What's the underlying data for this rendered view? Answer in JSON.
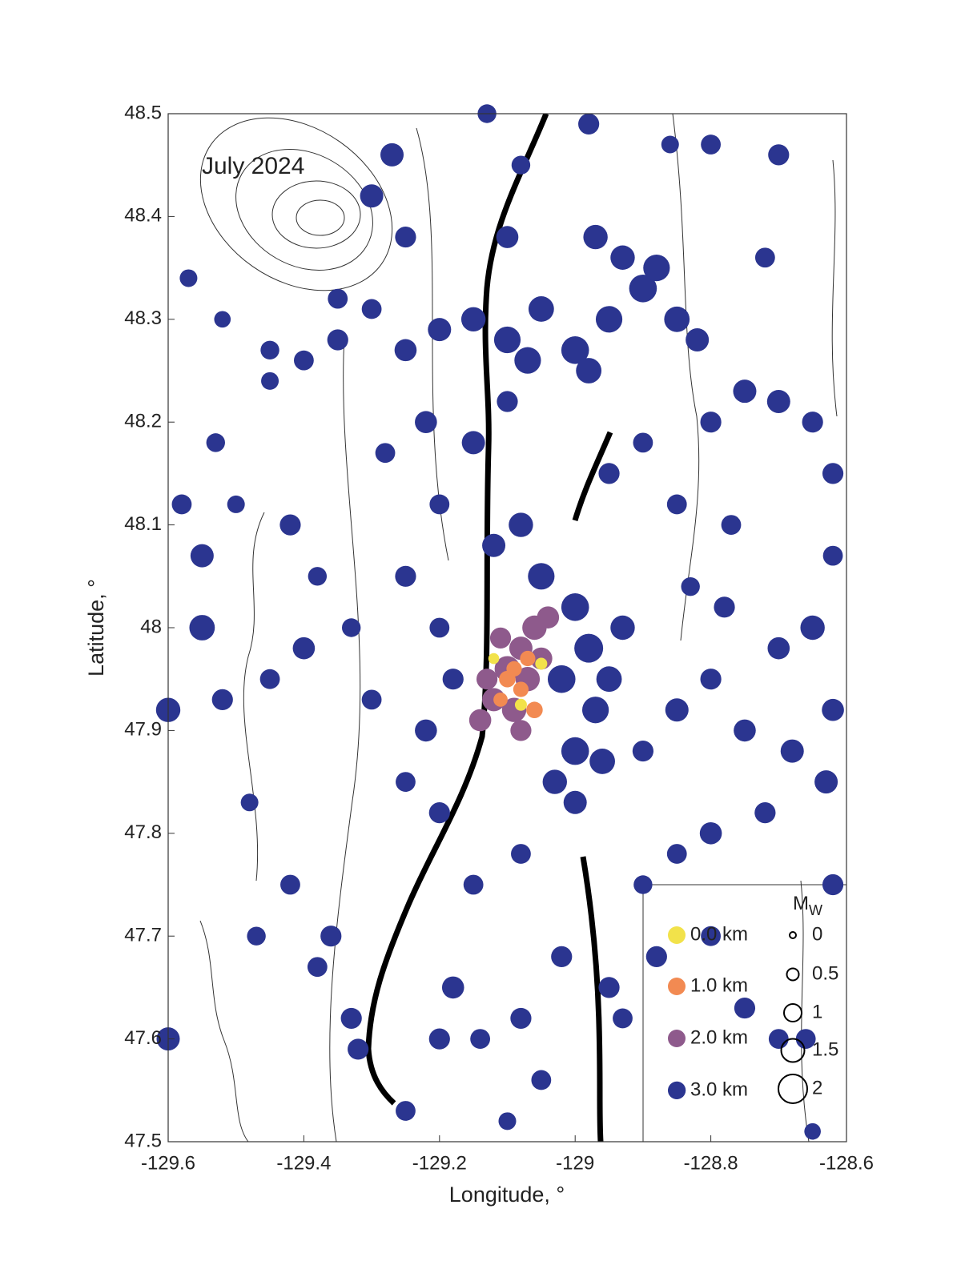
{
  "chart_data": {
    "type": "scatter",
    "annotation": "July 2024",
    "xlabel": "Longitude, °",
    "ylabel": "Latitude, °",
    "xlim": [
      -129.6,
      -128.6
    ],
    "ylim": [
      47.5,
      48.5
    ],
    "xticks": [
      -129.6,
      -129.4,
      -129.2,
      -129,
      -128.8,
      -128.6
    ],
    "yticks": [
      47.5,
      47.6,
      47.7,
      47.8,
      47.9,
      48,
      48.1,
      48.2,
      48.3,
      48.4,
      48.5
    ],
    "series": [
      {
        "name": "0.0 km",
        "color": "#f2e24a",
        "x": [
          -129.05,
          -129.12,
          -129.08
        ],
        "y": [
          47.965,
          47.97,
          47.925
        ],
        "size": [
          0.5,
          0.4,
          0.5
        ]
      },
      {
        "name": "1.0 km",
        "color": "#f28a52",
        "x": [
          -129.08,
          -129.1,
          -129.07,
          -129.11,
          -129.06,
          -129.09
        ],
        "y": [
          47.94,
          47.95,
          47.97,
          47.93,
          47.92,
          47.96
        ],
        "size": [
          0.8,
          0.9,
          0.8,
          0.7,
          0.9,
          0.8
        ]
      },
      {
        "name": "2.0 km",
        "color": "#8e5a8c",
        "x": [
          -129.06,
          -129.08,
          -129.1,
          -129.07,
          -129.12,
          -129.14,
          -129.09,
          -129.05,
          -129.11,
          -129.04,
          -129.13,
          -129.08
        ],
        "y": [
          48.0,
          47.98,
          47.96,
          47.95,
          47.93,
          47.91,
          47.92,
          47.97,
          47.99,
          48.01,
          47.95,
          47.9
        ],
        "size": [
          1.6,
          1.5,
          1.7,
          1.6,
          1.5,
          1.4,
          1.6,
          1.4,
          1.3,
          1.4,
          1.3,
          1.3
        ]
      },
      {
        "name": "3.0 km",
        "color": "#2b3590",
        "x": [
          -129.2,
          -129.15,
          -129.1,
          -129.05,
          -129.0,
          -128.95,
          -128.9,
          -128.85,
          -128.82,
          -129.25,
          -129.3,
          -129.35,
          -129.4,
          -129.45,
          -128.93,
          -128.88,
          -129.07,
          -128.98,
          -129.05,
          -129.0,
          -128.98,
          -129.02,
          -128.97,
          -129.0,
          -129.03,
          -128.95,
          -128.93,
          -129.08,
          -129.12,
          -128.96,
          -129.0,
          -129.57,
          -129.52,
          -129.45,
          -129.53,
          -129.58,
          -129.55,
          -129.5,
          -129.42,
          -129.38,
          -129.55,
          -129.6,
          -129.52,
          -129.45,
          -129.4,
          -129.33,
          -129.3,
          -129.48,
          -129.42,
          -129.47,
          -129.38,
          -129.36,
          -129.33,
          -129.32,
          -129.6,
          -129.25,
          -129.2,
          -129.18,
          -129.14,
          -129.08,
          -129.05,
          -129.02,
          -128.95,
          -128.93,
          -128.88,
          -128.8,
          -128.75,
          -128.7,
          -128.66,
          -128.65,
          -128.85,
          -129.1,
          -128.62,
          -128.63,
          -128.62,
          -128.68,
          -128.72,
          -128.8,
          -128.85,
          -128.9,
          -128.75,
          -128.7,
          -128.65,
          -128.62,
          -128.62,
          -128.65,
          -128.7,
          -128.75,
          -128.8,
          -128.77,
          -128.85,
          -128.83,
          -128.78,
          -128.8,
          -128.85,
          -128.9,
          -129.08,
          -129.15,
          -129.2,
          -129.25,
          -129.22,
          -129.18,
          -129.2,
          -129.25,
          -129.2,
          -129.28,
          -129.22,
          -129.15,
          -129.1,
          -128.95,
          -128.9,
          -129.3,
          -129.25,
          -129.1,
          -128.97,
          -129.08,
          -128.86,
          -128.7,
          -129.27,
          -129.13,
          -128.98,
          -128.8,
          -129.35,
          -128.72
        ],
        "y": [
          48.29,
          48.3,
          48.28,
          48.31,
          48.27,
          48.3,
          48.33,
          48.3,
          48.28,
          48.27,
          48.31,
          48.28,
          48.26,
          48.27,
          48.36,
          48.35,
          48.26,
          48.25,
          48.05,
          48.02,
          47.98,
          47.95,
          47.92,
          47.88,
          47.85,
          47.95,
          48.0,
          48.1,
          48.08,
          47.87,
          47.83,
          48.34,
          48.3,
          48.24,
          48.18,
          48.12,
          48.07,
          48.12,
          48.1,
          48.05,
          48.0,
          47.92,
          47.93,
          47.95,
          47.98,
          48.0,
          47.93,
          47.83,
          47.75,
          47.7,
          47.67,
          47.7,
          47.62,
          47.59,
          47.6,
          47.53,
          47.6,
          47.65,
          47.6,
          47.62,
          47.56,
          47.68,
          47.65,
          47.62,
          47.68,
          47.7,
          47.63,
          47.6,
          47.6,
          47.51,
          47.55,
          47.52,
          47.75,
          47.85,
          47.92,
          47.88,
          47.82,
          47.8,
          47.78,
          47.75,
          47.9,
          47.98,
          48.0,
          48.07,
          48.15,
          48.2,
          48.22,
          48.23,
          48.2,
          48.1,
          48.12,
          48.04,
          48.02,
          47.95,
          47.92,
          47.88,
          47.78,
          47.75,
          47.82,
          47.85,
          47.9,
          47.95,
          48.0,
          48.05,
          48.12,
          48.17,
          48.2,
          48.18,
          48.22,
          48.15,
          48.18,
          48.42,
          48.38,
          48.38,
          48.38,
          48.45,
          48.47,
          48.46,
          48.46,
          48.5,
          48.49,
          48.47,
          48.32,
          48.36
        ],
        "size": [
          1.5,
          1.6,
          1.8,
          1.7,
          1.9,
          1.8,
          1.9,
          1.7,
          1.5,
          1.4,
          1.2,
          1.3,
          1.2,
          1.1,
          1.6,
          1.8,
          1.8,
          1.7,
          1.8,
          1.9,
          2.0,
          1.9,
          1.8,
          1.9,
          1.6,
          1.7,
          1.6,
          1.6,
          1.5,
          1.7,
          1.5,
          1.0,
          0.9,
          1.0,
          1.1,
          1.2,
          1.5,
          1.0,
          1.3,
          1.1,
          1.7,
          1.6,
          1.3,
          1.2,
          1.4,
          1.1,
          1.2,
          1.0,
          1.2,
          1.1,
          1.2,
          1.3,
          1.3,
          1.3,
          1.5,
          1.2,
          1.3,
          1.4,
          1.2,
          1.3,
          1.2,
          1.3,
          1.3,
          1.2,
          1.3,
          1.2,
          1.3,
          1.2,
          1.2,
          0.9,
          1.0,
          1.0,
          1.3,
          1.5,
          1.4,
          1.5,
          1.3,
          1.4,
          1.2,
          1.1,
          1.4,
          1.4,
          1.6,
          1.2,
          1.3,
          1.3,
          1.5,
          1.5,
          1.3,
          1.2,
          1.2,
          1.1,
          1.3,
          1.3,
          1.5,
          1.3,
          1.2,
          1.2,
          1.3,
          1.2,
          1.4,
          1.3,
          1.2,
          1.3,
          1.2,
          1.2,
          1.4,
          1.5,
          1.3,
          1.3,
          1.2,
          1.5,
          1.3,
          1.4,
          1.6,
          1.1,
          1.0,
          1.3,
          1.5,
          1.1,
          1.3,
          1.2,
          1.2,
          1.2
        ]
      }
    ],
    "size_legend": {
      "title": [
        "M",
        "W"
      ],
      "values": [
        0,
        0.5,
        1,
        1.5,
        2
      ]
    }
  }
}
